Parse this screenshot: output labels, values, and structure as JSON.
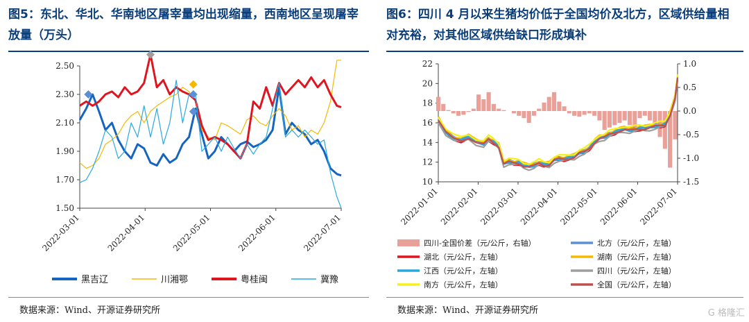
{
  "left": {
    "title": "图5：东北、华北、华南地区屠宰量均出现缩量，西南地区呈现屠宰放量（万头）",
    "source": "数据来源：Wind、开源证券研究所"
  },
  "right": {
    "title": "图6：四川 4 月以来生猪均价低于全国均价及北方，区域供给量相对充裕，对其他区域供给缺口形成填补",
    "source": "数据来源：Wind、开源证券研究所"
  },
  "watermark": "G 格隆汇",
  "chart_data": [
    {
      "type": "line",
      "title": "",
      "ylim": [
        1.5,
        2.5
      ],
      "yticks": [
        "1.50",
        "1.70",
        "1.90",
        "2.10",
        "2.30",
        "2.50"
      ],
      "xticks": [
        "2022-03-01",
        "2022-04-01",
        "2022-05-01",
        "2022-06-01",
        "2022-07-01"
      ],
      "x_range": [
        0,
        122
      ],
      "legend_position": "bottom",
      "series": [
        {
          "name": "黑吉辽",
          "color": "#1565c0",
          "width": 3,
          "x": [
            0,
            3,
            6,
            9,
            12,
            15,
            18,
            21,
            24,
            27,
            30,
            33,
            36,
            39,
            42,
            45,
            48,
            51,
            54,
            57,
            60,
            63,
            66,
            69,
            72,
            75,
            78,
            81,
            84,
            87,
            90,
            93,
            96,
            99,
            102,
            105,
            108,
            111,
            114,
            117,
            120,
            122
          ],
          "y": [
            2.12,
            2.2,
            2.3,
            2.18,
            2.05,
            2.1,
            1.98,
            1.9,
            1.85,
            1.95,
            1.92,
            1.82,
            1.8,
            1.88,
            1.82,
            1.85,
            1.95,
            2.0,
            2.2,
            2.02,
            1.85,
            1.9,
            2.0,
            1.95,
            1.9,
            1.95,
            1.97,
            1.93,
            1.95,
            1.98,
            2.05,
            2.35,
            2.02,
            2.1,
            2.05,
            2.02,
            1.95,
            1.98,
            1.9,
            1.78,
            1.74,
            1.73
          ]
        },
        {
          "name": "川湘鄂",
          "color": "#f5b800",
          "width": 1.2,
          "x": [
            0,
            3,
            6,
            9,
            12,
            15,
            18,
            21,
            24,
            27,
            30,
            33,
            36,
            39,
            42,
            45,
            48,
            51,
            54,
            57,
            60,
            63,
            66,
            69,
            72,
            75,
            78,
            81,
            84,
            87,
            90,
            93,
            96,
            99,
            102,
            105,
            108,
            111,
            114,
            117,
            120,
            122
          ],
          "y": [
            1.82,
            1.78,
            1.8,
            1.85,
            1.95,
            1.98,
            2.02,
            2.1,
            2.15,
            2.18,
            2.1,
            2.18,
            2.22,
            2.25,
            2.28,
            2.3,
            2.35,
            2.32,
            2.25,
            2.05,
            2.0,
            1.98,
            2.1,
            2.08,
            2.05,
            2.02,
            2.12,
            2.15,
            2.1,
            2.08,
            2.15,
            2.2,
            2.15,
            2.05,
            2.08,
            2.0,
            2.05,
            2.02,
            2.1,
            2.25,
            2.54,
            2.54
          ]
        },
        {
          "name": "粤桂闽",
          "color": "#e0141e",
          "width": 3,
          "x": [
            0,
            3,
            6,
            9,
            12,
            15,
            18,
            21,
            24,
            27,
            30,
            33,
            36,
            39,
            42,
            45,
            48,
            51,
            54,
            57,
            60,
            63,
            66,
            69,
            72,
            75,
            78,
            81,
            84,
            87,
            90,
            93,
            96,
            99,
            102,
            105,
            108,
            111,
            114,
            117,
            120,
            122
          ],
          "y": [
            2.22,
            2.25,
            2.22,
            2.25,
            2.3,
            2.32,
            2.28,
            2.35,
            2.3,
            2.32,
            2.38,
            2.58,
            2.35,
            2.4,
            2.3,
            2.35,
            2.32,
            2.3,
            2.26,
            2.08,
            1.98,
            2.0,
            1.98,
            1.95,
            1.9,
            1.85,
            1.95,
            2.25,
            2.2,
            2.35,
            2.22,
            2.38,
            2.3,
            2.35,
            2.4,
            2.35,
            2.42,
            2.35,
            2.4,
            2.3,
            2.22,
            2.21
          ]
        },
        {
          "name": "冀豫",
          "color": "#29a8e0",
          "width": 1.2,
          "x": [
            0,
            3,
            6,
            9,
            12,
            15,
            18,
            21,
            24,
            27,
            30,
            33,
            36,
            39,
            42,
            45,
            48,
            51,
            54,
            57,
            60,
            63,
            66,
            69,
            72,
            75,
            78,
            81,
            84,
            87,
            90,
            93,
            96,
            99,
            102,
            105,
            108,
            111,
            114,
            117,
            120,
            122
          ],
          "y": [
            1.68,
            1.7,
            1.78,
            1.9,
            2.05,
            2.0,
            1.85,
            1.9,
            2.1,
            2.0,
            2.22,
            2.0,
            2.2,
            1.95,
            2.1,
            2.4,
            2.1,
            2.3,
            2.3,
            1.9,
            1.95,
            2.0,
            1.9,
            2.0,
            1.92,
            1.85,
            1.95,
            1.88,
            1.95,
            2.0,
            2.2,
            2.38,
            2.0,
            2.05,
            2.0,
            2.05,
            2.0,
            1.95,
            1.98,
            1.75,
            1.58,
            1.5
          ]
        }
      ],
      "markers": [
        {
          "series": "黑吉辽",
          "x": 4,
          "y": 2.3,
          "color": "#5b8fd6"
        },
        {
          "series": "粤桂闽",
          "x": 33,
          "y": 2.58,
          "color": "#9e9e9e"
        },
        {
          "series": "川湘鄂",
          "x": 53,
          "y": 2.37,
          "color": "#f5b800"
        },
        {
          "series": "冀豫",
          "x": 53,
          "y": 2.3,
          "color": "#5b8fd6"
        },
        {
          "series": "冀豫",
          "x": 53,
          "y": 2.18,
          "color": "#5b8fd6"
        }
      ]
    },
    {
      "type": "line+bar",
      "title": "",
      "ylim_left": [
        10,
        22
      ],
      "yticks_left": [
        "10",
        "12",
        "14",
        "16",
        "18",
        "20",
        "22"
      ],
      "ylim_right": [
        -1.5,
        1.0
      ],
      "yticks_right": [
        "-1.5",
        "-1.0",
        "-0.5",
        "0.0",
        "0.5",
        "1.0"
      ],
      "xticks": [
        "2022-01-01",
        "2022-02-01",
        "2022-03-01",
        "2022-04-01",
        "2022-05-01",
        "2022-06-01",
        "2022-07-01"
      ],
      "x_range": [
        0,
        190
      ],
      "legend_position": "bottom",
      "bars": {
        "name": "四川-全国价差（元/公斤，右轴）",
        "color": "#e8a098",
        "x": [
          0,
          4,
          8,
          12,
          16,
          20,
          24,
          28,
          32,
          36,
          40,
          44,
          48,
          52,
          56,
          60,
          64,
          68,
          72,
          76,
          80,
          84,
          88,
          92,
          96,
          100,
          104,
          108,
          112,
          116,
          120,
          124,
          128,
          132,
          136,
          140,
          144,
          148,
          152,
          156,
          160,
          164,
          168,
          172,
          176,
          180,
          184,
          188
        ],
        "y": [
          0.3,
          0.15,
          0.02,
          -0.05,
          -0.1,
          -0.08,
          -0.02,
          0.05,
          0.35,
          0.25,
          0.4,
          0.15,
          0.05,
          0.02,
          0.0,
          -0.05,
          -0.1,
          -0.15,
          -0.25,
          -0.1,
          0.05,
          0.18,
          0.3,
          0.4,
          0.2,
          0.1,
          -0.05,
          -0.1,
          -0.12,
          -0.08,
          -0.05,
          -0.1,
          -0.2,
          -0.4,
          -0.35,
          -0.3,
          -0.25,
          -0.2,
          -0.3,
          -0.35,
          -0.15,
          -0.1,
          -0.2,
          -0.3,
          -0.55,
          -0.8,
          -1.2,
          -0.6
        ]
      },
      "series": [
        {
          "name": "北方（元/公斤，左轴）",
          "color": "#5b8fd6"
        },
        {
          "name": "湖北（元/公斤，左轴）",
          "color": "#e0141e"
        },
        {
          "name": "湖南（元/公斤，左轴）",
          "color": "#f5b800"
        },
        {
          "name": "江西（元/公斤，左轴）",
          "color": "#29a8e0"
        },
        {
          "name": "四川（元/公斤，左轴）",
          "color": "#9e9e9e"
        },
        {
          "name": "南方（元/公斤，左轴）",
          "color": "#f7ef1a"
        },
        {
          "name": "全国（元/公斤，左轴）",
          "color": "#c0504d"
        }
      ],
      "base_curve": {
        "x": [
          0,
          6,
          12,
          18,
          24,
          30,
          36,
          40,
          44,
          48,
          52,
          56,
          60,
          64,
          68,
          72,
          76,
          80,
          84,
          88,
          92,
          96,
          100,
          104,
          108,
          112,
          116,
          120,
          124,
          128,
          132,
          136,
          140,
          144,
          148,
          152,
          156,
          160,
          164,
          168,
          172,
          176,
          180,
          184,
          188,
          190
        ],
        "y": [
          16.3,
          15.0,
          14.4,
          14.2,
          14.5,
          14.0,
          13.8,
          14.3,
          14.0,
          13.6,
          11.8,
          12.0,
          11.9,
          11.9,
          11.6,
          11.5,
          11.6,
          11.9,
          11.7,
          11.7,
          12.2,
          12.3,
          12.3,
          12.4,
          12.5,
          12.9,
          13.0,
          13.4,
          14.0,
          14.4,
          14.5,
          14.8,
          15.0,
          15.2,
          15.3,
          15.2,
          15.3,
          15.4,
          15.4,
          15.5,
          15.6,
          15.7,
          15.8,
          16.8,
          18.5,
          20.5
        ]
      }
    }
  ]
}
